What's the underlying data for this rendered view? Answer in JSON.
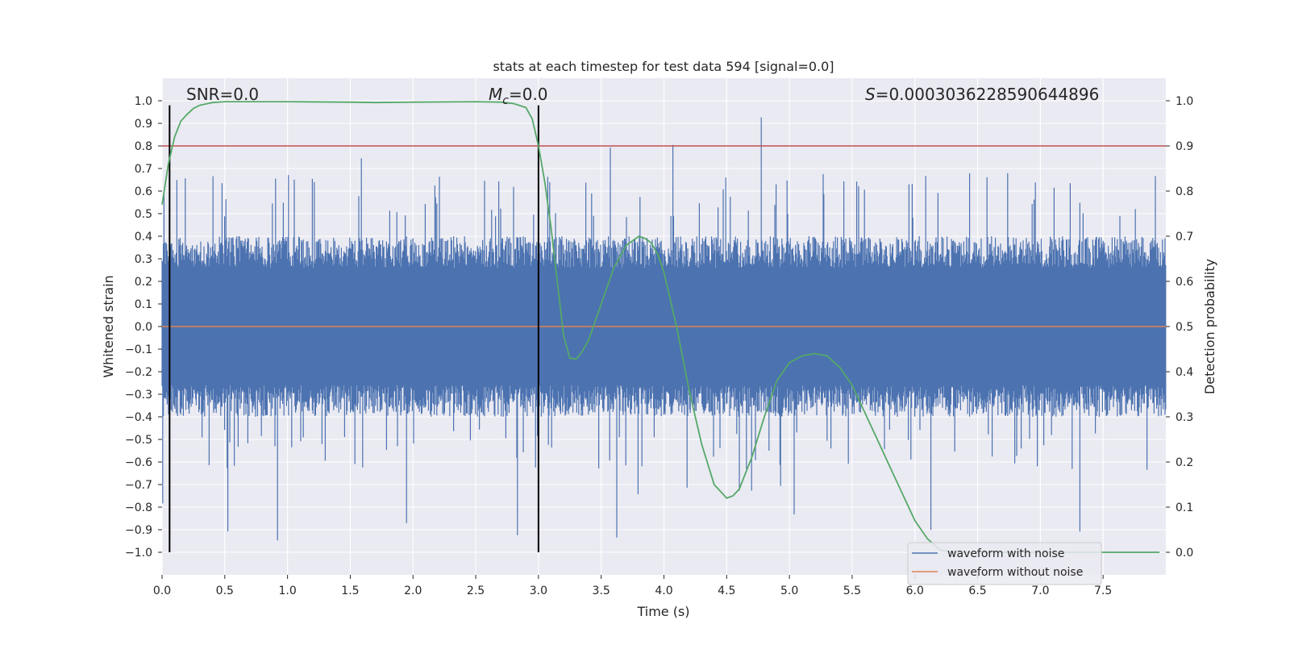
{
  "chart_data": {
    "type": "line",
    "title": "stats at each timestep for test data 594 [signal=0.0]",
    "xlabel": "Time (s)",
    "ylabel_left": "Whitened strain",
    "ylabel_right": "Detection probability",
    "xlim": [
      0.0,
      8.0
    ],
    "ylim_left": [
      -1.1,
      1.1
    ],
    "ylim_right": [
      -0.05,
      1.05
    ],
    "x_ticks": [
      "0.0",
      "0.5",
      "1.0",
      "1.5",
      "2.0",
      "2.5",
      "3.0",
      "3.5",
      "4.0",
      "4.5",
      "5.0",
      "5.5",
      "6.0",
      "6.5",
      "7.0",
      "7.5"
    ],
    "y_left_ticks": [
      "1.0",
      "0.9",
      "0.8",
      "0.7",
      "0.6",
      "0.5",
      "0.4",
      "0.3",
      "0.2",
      "0.1",
      "0.0",
      "−0.1",
      "−0.2",
      "−0.3",
      "−0.4",
      "−0.5",
      "−0.6",
      "−0.7",
      "−0.8",
      "−0.9",
      "−1.0"
    ],
    "y_right_ticks": [
      "1.0",
      "0.9",
      "0.8",
      "0.7",
      "0.6",
      "0.5",
      "0.4",
      "0.3",
      "0.2",
      "0.1",
      "0.0"
    ],
    "annotations": {
      "snr": "SNR=0.0",
      "mc_symbol": "M",
      "mc_sub": "c",
      "mc_value": "=0.0",
      "s_symbol": "S",
      "s_value": "=0.0003036228590644896"
    },
    "threshold_right": 0.9,
    "vertical_lines_x": [
      0.06,
      3.0
    ],
    "vertical_lines_range": [
      -1.0,
      0.98
    ],
    "detection_probability": {
      "x": [
        0.0,
        0.05,
        0.1,
        0.15,
        0.2,
        0.25,
        0.3,
        0.4,
        0.5,
        0.7,
        1.0,
        1.5,
        1.7,
        2.0,
        2.5,
        2.7,
        2.8,
        2.9,
        2.95,
        3.0,
        3.05,
        3.1,
        3.15,
        3.2,
        3.25,
        3.3,
        3.35,
        3.4,
        3.5,
        3.6,
        3.7,
        3.8,
        3.85,
        3.9,
        3.95,
        4.0,
        4.1,
        4.2,
        4.3,
        4.4,
        4.5,
        4.55,
        4.6,
        4.7,
        4.8,
        4.9,
        5.0,
        5.1,
        5.2,
        5.3,
        5.4,
        5.5,
        5.6,
        5.7,
        5.8,
        5.9,
        6.0,
        6.1,
        6.2,
        6.3,
        6.5,
        7.0,
        7.5,
        7.95
      ],
      "y": [
        0.77,
        0.86,
        0.92,
        0.955,
        0.97,
        0.983,
        0.99,
        0.996,
        0.998,
        0.998,
        0.998,
        0.997,
        0.996,
        0.997,
        0.998,
        0.997,
        0.994,
        0.985,
        0.96,
        0.9,
        0.82,
        0.72,
        0.6,
        0.48,
        0.43,
        0.428,
        0.445,
        0.47,
        0.55,
        0.63,
        0.68,
        0.7,
        0.695,
        0.685,
        0.66,
        0.62,
        0.5,
        0.36,
        0.24,
        0.15,
        0.12,
        0.125,
        0.14,
        0.21,
        0.3,
        0.38,
        0.42,
        0.435,
        0.44,
        0.435,
        0.41,
        0.37,
        0.31,
        0.25,
        0.19,
        0.13,
        0.07,
        0.03,
        0.005,
        0.0,
        0.0,
        0.0,
        0.0,
        0.0
      ]
    },
    "series": [
      {
        "name": "waveform with noise",
        "color": "#4c72b0",
        "axis": "left",
        "envelope": "noisy strain filling roughly -0.4..0.4 with spikes up to about ±0.9"
      },
      {
        "name": "waveform without noise",
        "color": "#dd8452",
        "axis": "left",
        "value": 0.0
      },
      {
        "name": "detection probability",
        "color": "#55a868",
        "axis": "right"
      },
      {
        "name": "threshold",
        "color": "#c44e52",
        "axis": "right",
        "value": 0.9
      }
    ],
    "legend": {
      "placement": "lower-right",
      "entries": [
        "waveform with noise",
        "waveform without noise"
      ]
    },
    "grid": true
  }
}
